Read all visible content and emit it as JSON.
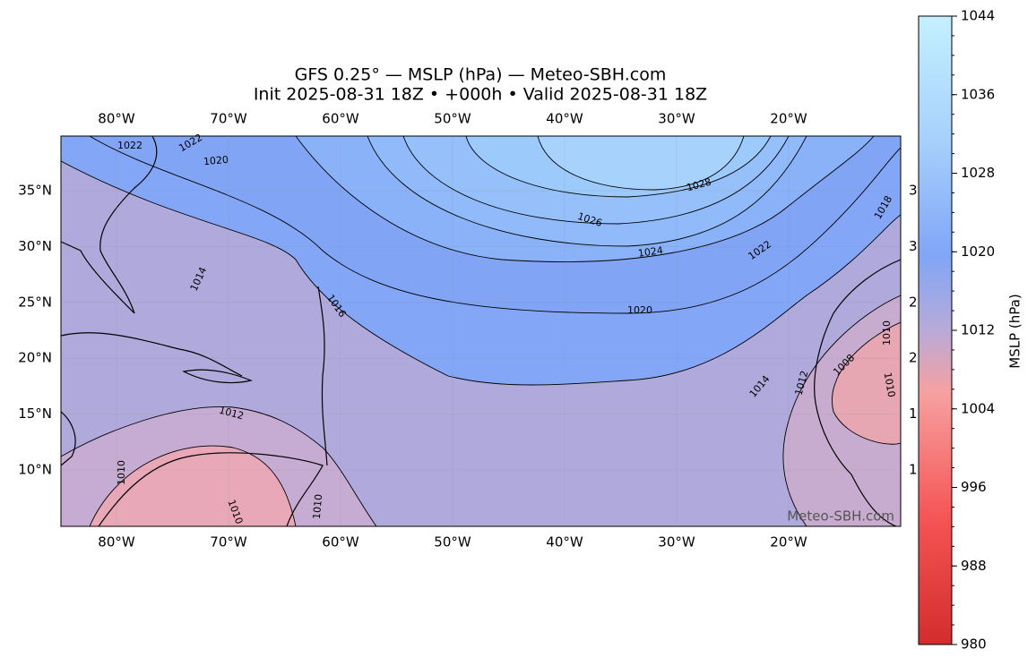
{
  "title": "GFS 0.25° — MSLP (hPa) — Meteo-SBH.com",
  "subtitle": "Init 2025-08-31 18Z • +000h • Valid 2025-08-31 18Z",
  "lon_labels": [
    "80°W",
    "70°W",
    "60°W",
    "50°W",
    "40°W",
    "30°W",
    "20°W"
  ],
  "lat_labels": [
    "35°N",
    "30°N",
    "25°N",
    "20°N",
    "15°N",
    "10°N"
  ],
  "contour_labels": [
    "1022",
    "1022",
    "1020",
    "1028",
    "1026",
    "1024",
    "1022",
    "1018",
    "1020",
    "1016",
    "1014",
    "1014",
    "1012",
    "1012",
    "1010",
    "1008",
    "1010",
    "1010",
    "1010",
    "1010"
  ],
  "watermark": "Meteo-SBH.com",
  "colorbar": {
    "label": "MSLP (hPa)",
    "lim": [
      980,
      1044
    ],
    "ticks": [
      980,
      988,
      996,
      1004,
      1012,
      1020,
      1028,
      1036,
      1044
    ]
  }
}
